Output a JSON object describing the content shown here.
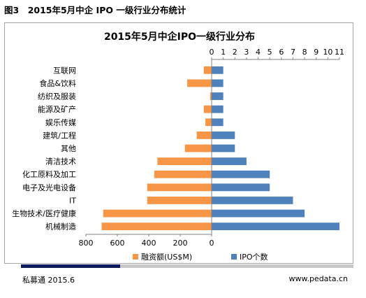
{
  "figure_label": "图3　2015年5月中企 IPO 一级行业分布统计",
  "source_left": "私募通 2015.6",
  "source_right": "www.pedata.cn",
  "chart_data": {
    "type": "bar",
    "orientation": "horizontal-butterfly",
    "title": "2015年5月中企IPO一级行业分布",
    "categories": [
      "互联网",
      "食品&饮料",
      "纺织及服装",
      "能源及矿产",
      "娱乐传媒",
      "建筑/工程",
      "其他",
      "清洁技术",
      "化工原料及加工",
      "电子及光电设备",
      "IT",
      "生物技术/医疗健康",
      "机械制造"
    ],
    "series": [
      {
        "name": "融资额(US$M)",
        "color": "#f79646",
        "axis": "bottom-left",
        "values": [
          50,
          155,
          10,
          50,
          40,
          95,
          170,
          345,
          365,
          410,
          410,
          690,
          700
        ]
      },
      {
        "name": "IPO个数",
        "color": "#4f81bd",
        "axis": "top-right",
        "values": [
          1,
          1,
          1,
          1,
          1,
          2,
          2,
          3,
          5,
          5,
          7,
          8,
          11
        ]
      }
    ],
    "left_axis": {
      "range": [
        0,
        800
      ],
      "ticks": [
        "800",
        "600",
        "400",
        "200",
        "0"
      ]
    },
    "right_axis": {
      "range": [
        0,
        11
      ],
      "ticks": [
        "0",
        "1",
        "2",
        "3",
        "4",
        "5",
        "6",
        "7",
        "8",
        "9",
        "10",
        "11"
      ]
    },
    "legend_position": "bottom",
    "grid": false
  }
}
